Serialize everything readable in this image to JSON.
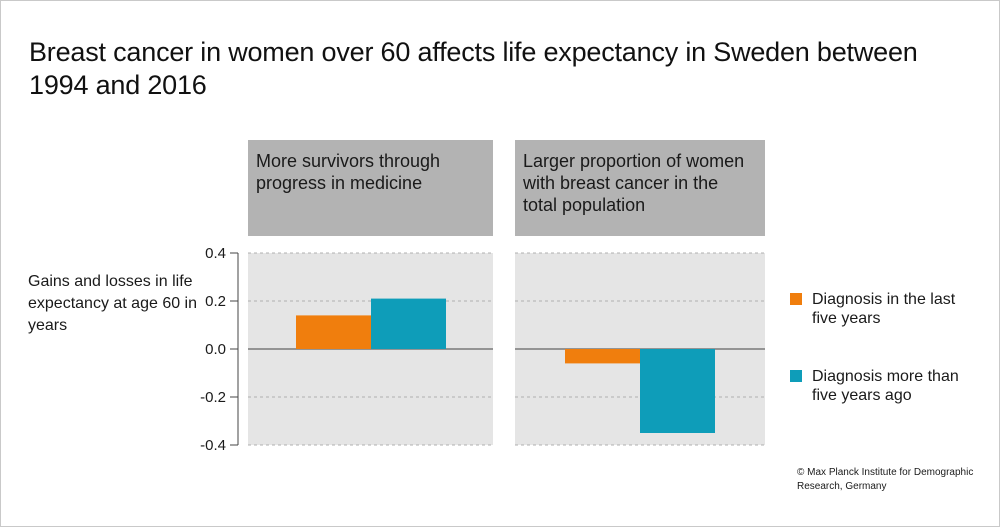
{
  "title": "Breast cancer in women over 60 affects life expectancy in Sweden between 1994 and 2016",
  "panels": [
    {
      "header": "More survivors through progress in medicine"
    },
    {
      "header": "Larger proportion of women with breast cancer in the total population"
    }
  ],
  "ylabel": "Gains and losses in life expectancy at age 60 in years",
  "legend": [
    {
      "label": "Diagnosis in the last five years",
      "color": "#f07e0d"
    },
    {
      "label": "Diagnosis more than five years ago",
      "color": "#0e9db9"
    }
  ],
  "copyright": "© Max Planck Institute for Demographic Research, Germany",
  "colors": {
    "panel_background": "#e5e5e5",
    "header_background": "#b3b3b3",
    "gridline": "#b0b0b0"
  },
  "chart_data": {
    "type": "bar",
    "ylim": [
      -0.4,
      0.4
    ],
    "yticks": [
      "0.4",
      "0.2",
      "0.0",
      "-0.2",
      "-0.4"
    ],
    "ytick_values": [
      0.4,
      0.2,
      0.0,
      -0.2,
      -0.4
    ],
    "grid": true,
    "legend_position": "right",
    "categories": [
      "More survivors through progress in medicine",
      "Larger proportion of women with breast cancer in the total population"
    ],
    "series": [
      {
        "name": "Diagnosis in the last five years",
        "values": [
          0.14,
          -0.06
        ]
      },
      {
        "name": "Diagnosis more than five years ago",
        "values": [
          0.21,
          -0.35
        ]
      }
    ]
  }
}
